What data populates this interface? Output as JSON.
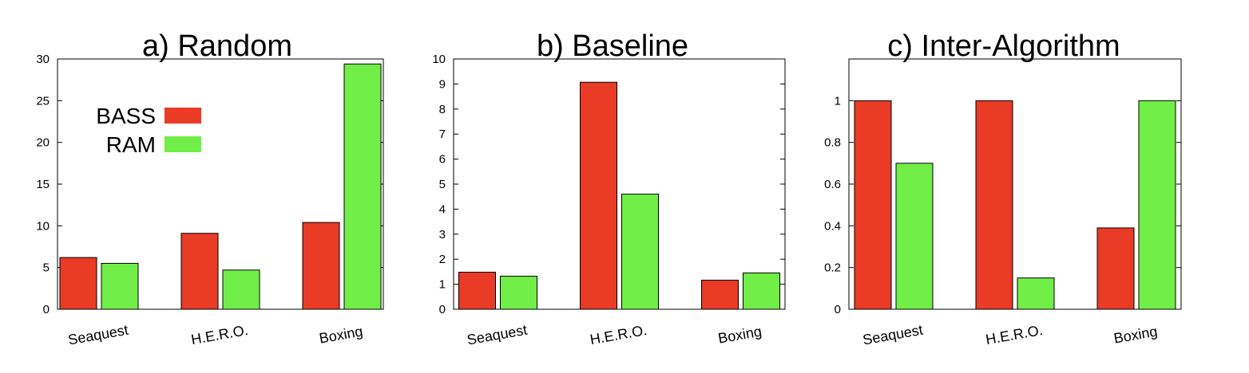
{
  "colors": {
    "BASS": "#e93b26",
    "RAM": "#71ee48"
  },
  "legend": [
    "BASS",
    "RAM"
  ],
  "chart_data": [
    {
      "type": "bar",
      "title": "a) Random",
      "categories": [
        "Seaquest",
        "H.E.R.O.",
        "Boxing"
      ],
      "series": [
        {
          "name": "BASS",
          "values": [
            6.2,
            9.1,
            10.4
          ]
        },
        {
          "name": "RAM",
          "values": [
            5.5,
            4.7,
            29.4
          ]
        }
      ],
      "ylim": [
        0,
        30
      ],
      "yticks": [
        "0",
        "5",
        "10",
        "15",
        "20",
        "25",
        "30"
      ],
      "legend": "top-left",
      "grid": false
    },
    {
      "type": "bar",
      "title": "b) Baseline",
      "categories": [
        "Seaquest",
        "H.E.R.O.",
        "Boxing"
      ],
      "series": [
        {
          "name": "BASS",
          "values": [
            1.48,
            9.07,
            1.16
          ]
        },
        {
          "name": "RAM",
          "values": [
            1.32,
            4.6,
            1.45
          ]
        }
      ],
      "ylim": [
        0,
        10
      ],
      "yticks": [
        "0",
        "1",
        "2",
        "3",
        "4",
        "5",
        "6",
        "7",
        "8",
        "9",
        "10"
      ],
      "grid": false
    },
    {
      "type": "bar",
      "title": "c) Inter-Algorithm",
      "categories": [
        "Seaquest",
        "H.E.R.O.",
        "Boxing"
      ],
      "series": [
        {
          "name": "BASS",
          "values": [
            1.0,
            1.0,
            0.39
          ]
        },
        {
          "name": "RAM",
          "values": [
            0.7,
            0.15,
            1.0
          ]
        }
      ],
      "ylim": [
        0,
        1.2
      ],
      "yticks": [
        "0",
        "0.2",
        "0.4",
        "0.6",
        "0.8",
        "1"
      ],
      "grid": false
    }
  ]
}
